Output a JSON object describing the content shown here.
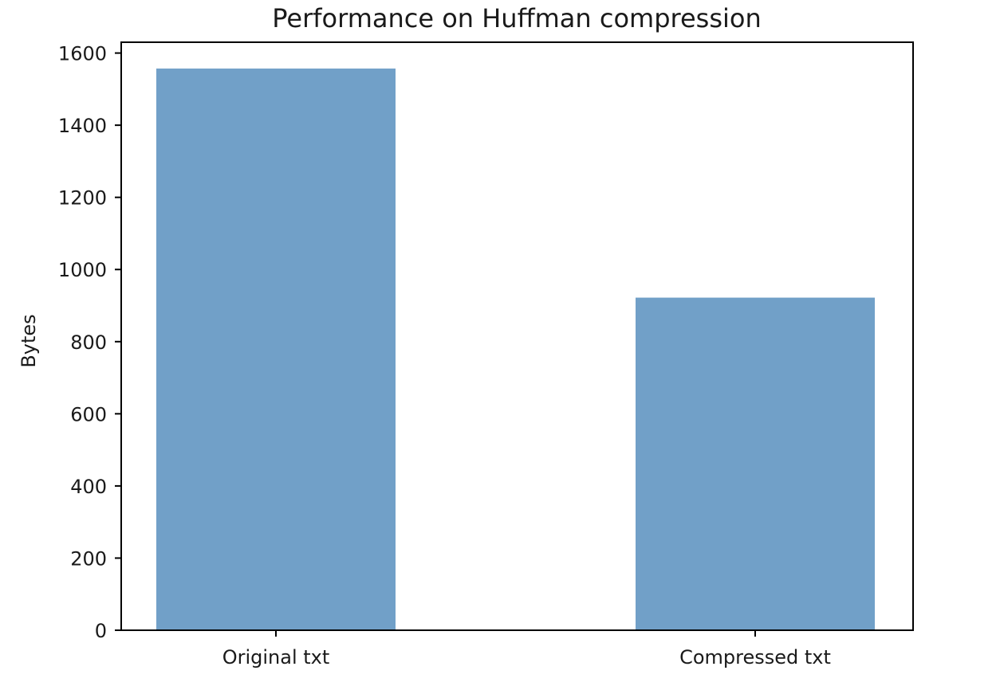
{
  "chart_data": {
    "type": "bar",
    "title": "Performance on Huffman compression",
    "xlabel": "",
    "ylabel": "Bytes",
    "categories": [
      "Original txt",
      "Compressed txt"
    ],
    "values": [
      1557,
      922
    ],
    "ylim": [
      0,
      1630
    ],
    "yticks": [
      0,
      200,
      400,
      600,
      800,
      1000,
      1200,
      1400,
      1600
    ],
    "bar_color": "#71a0c8",
    "grid": false,
    "legend": "none"
  }
}
